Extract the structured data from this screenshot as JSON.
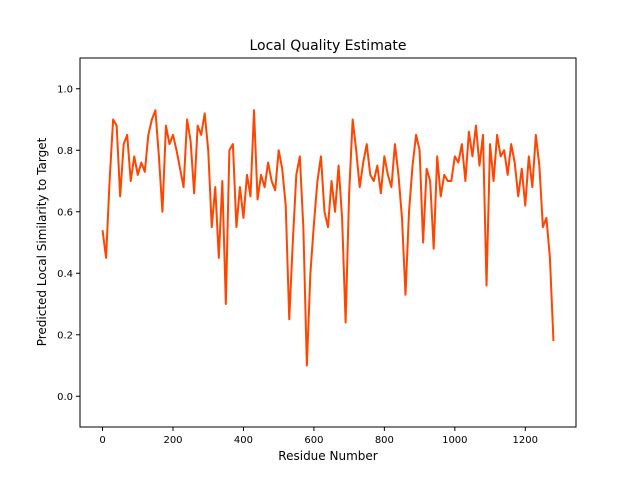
{
  "chart_data": {
    "type": "line",
    "title": "Local Quality Estimate",
    "x_label": "Residue Number",
    "y_label": "Predicted Local Similarity to Target",
    "x": [
      0,
      10,
      20,
      30,
      40,
      50,
      60,
      70,
      80,
      90,
      100,
      110,
      120,
      130,
      140,
      150,
      160,
      170,
      180,
      190,
      200,
      210,
      220,
      230,
      240,
      250,
      260,
      270,
      280,
      290,
      300,
      310,
      320,
      330,
      340,
      350,
      360,
      370,
      380,
      390,
      400,
      410,
      420,
      430,
      440,
      450,
      460,
      470,
      480,
      490,
      500,
      510,
      520,
      530,
      540,
      550,
      560,
      570,
      580,
      590,
      600,
      610,
      620,
      630,
      640,
      650,
      660,
      670,
      680,
      690,
      700,
      710,
      720,
      730,
      740,
      750,
      760,
      770,
      780,
      790,
      800,
      810,
      820,
      830,
      840,
      850,
      860,
      870,
      880,
      890,
      900,
      910,
      920,
      930,
      940,
      950,
      960,
      970,
      980,
      990,
      1000,
      1010,
      1020,
      1030,
      1040,
      1050,
      1060,
      1070,
      1080,
      1090,
      1100,
      1110,
      1120,
      1130,
      1140,
      1150,
      1160,
      1170,
      1180,
      1190,
      1200,
      1210,
      1220,
      1230,
      1240,
      1250,
      1260,
      1270,
      1280
    ],
    "series": [
      {
        "color": "#ff4500",
        "values": [
          0.54,
          0.45,
          0.7,
          0.9,
          0.88,
          0.65,
          0.82,
          0.85,
          0.7,
          0.78,
          0.72,
          0.76,
          0.73,
          0.85,
          0.9,
          0.93,
          0.78,
          0.6,
          0.88,
          0.82,
          0.85,
          0.8,
          0.74,
          0.68,
          0.9,
          0.83,
          0.66,
          0.88,
          0.85,
          0.92,
          0.8,
          0.55,
          0.68,
          0.45,
          0.7,
          0.3,
          0.8,
          0.82,
          0.55,
          0.68,
          0.58,
          0.72,
          0.65,
          0.93,
          0.64,
          0.72,
          0.68,
          0.76,
          0.7,
          0.67,
          0.8,
          0.74,
          0.62,
          0.25,
          0.5,
          0.72,
          0.78,
          0.55,
          0.1,
          0.4,
          0.56,
          0.7,
          0.78,
          0.6,
          0.55,
          0.7,
          0.6,
          0.75,
          0.58,
          0.24,
          0.66,
          0.9,
          0.8,
          0.68,
          0.76,
          0.82,
          0.72,
          0.7,
          0.75,
          0.66,
          0.78,
          0.72,
          0.68,
          0.82,
          0.72,
          0.58,
          0.33,
          0.6,
          0.75,
          0.85,
          0.8,
          0.5,
          0.74,
          0.7,
          0.48,
          0.78,
          0.65,
          0.72,
          0.7,
          0.7,
          0.78,
          0.76,
          0.82,
          0.7,
          0.86,
          0.78,
          0.88,
          0.75,
          0.85,
          0.36,
          0.82,
          0.7,
          0.85,
          0.78,
          0.8,
          0.72,
          0.82,
          0.76,
          0.65,
          0.74,
          0.62,
          0.78,
          0.68,
          0.85,
          0.75,
          0.55,
          0.58,
          0.45,
          0.18
        ]
      }
    ],
    "xlim": [
      -64,
      1344
    ],
    "ylim": [
      -0.1,
      1.1
    ],
    "xticks": [
      0,
      200,
      400,
      600,
      800,
      1000,
      1200
    ],
    "yticks": [
      {
        "value": 0,
        "label": "0.0"
      },
      0.2,
      0.4,
      0.6,
      0.8,
      {
        "value": 1,
        "label": "1.0"
      }
    ]
  }
}
